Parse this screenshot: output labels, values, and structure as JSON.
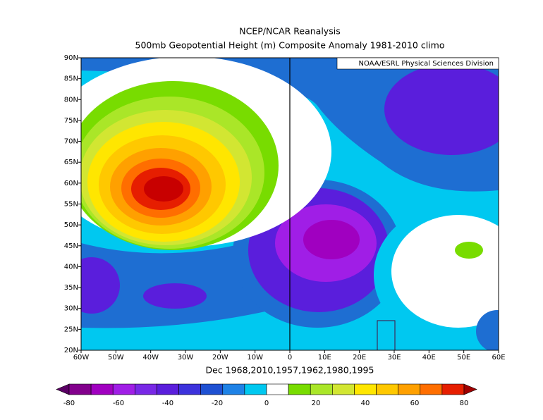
{
  "title": "NCEP/NCAR Reanalysis",
  "subtitle": "500mb Geopotential Height (m) Composite Anomaly 1981-2010 climo",
  "credit": "NOAA/ESRL Physical Sciences Division",
  "caption": "Dec 1968,2010,1957,1962,1980,1995",
  "xlim": [
    -60,
    60
  ],
  "ylim": [
    20,
    90
  ],
  "xticks": [
    {
      "value": -60,
      "label": "60W"
    },
    {
      "value": -50,
      "label": "50W"
    },
    {
      "value": -40,
      "label": "40W"
    },
    {
      "value": -30,
      "label": "30W"
    },
    {
      "value": -20,
      "label": "20W"
    },
    {
      "value": -10,
      "label": "10W"
    },
    {
      "value": 0,
      "label": "0"
    },
    {
      "value": 10,
      "label": "10E"
    },
    {
      "value": 20,
      "label": "20E"
    },
    {
      "value": 30,
      "label": "30E"
    },
    {
      "value": 40,
      "label": "40E"
    },
    {
      "value": 50,
      "label": "50E"
    },
    {
      "value": 60,
      "label": "60E"
    }
  ],
  "yticks": [
    {
      "value": 20,
      "label": "20N"
    },
    {
      "value": 25,
      "label": "25N"
    },
    {
      "value": 30,
      "label": "30N"
    },
    {
      "value": 35,
      "label": "35N"
    },
    {
      "value": 40,
      "label": "40N"
    },
    {
      "value": 45,
      "label": "45N"
    },
    {
      "value": 50,
      "label": "50N"
    },
    {
      "value": 55,
      "label": "55N"
    },
    {
      "value": 60,
      "label": "60N"
    },
    {
      "value": 65,
      "label": "65N"
    },
    {
      "value": 70,
      "label": "70N"
    },
    {
      "value": 75,
      "label": "75N"
    },
    {
      "value": 80,
      "label": "80N"
    },
    {
      "value": 85,
      "label": "85N"
    },
    {
      "value": 90,
      "label": "90N"
    }
  ],
  "colorbar": {
    "labels": [
      -80,
      -60,
      -40,
      -20,
      0,
      20,
      40,
      60,
      80
    ],
    "colors": [
      "#5a0064",
      "#82008c",
      "#a000c0",
      "#a01ee6",
      "#7828e6",
      "#5a1edc",
      "#3c32dc",
      "#1e50d2",
      "#1e82e6",
      "#00c8f0",
      "#ffffff",
      "#78dc00",
      "#aae628",
      "#d2e632",
      "#ffe600",
      "#ffc800",
      "#ffa000",
      "#ff6e00",
      "#e61e00",
      "#a00000"
    ]
  }
}
